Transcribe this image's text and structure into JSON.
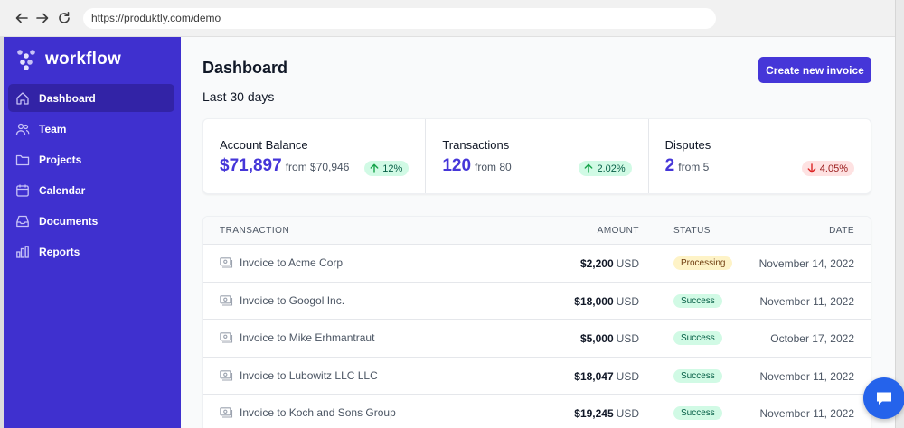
{
  "browser": {
    "url": "https://produktly.com/demo"
  },
  "sidebar": {
    "logo_text": "workflow",
    "items": [
      {
        "label": "Dashboard",
        "icon": "home-icon",
        "active": true
      },
      {
        "label": "Team",
        "icon": "users-icon"
      },
      {
        "label": "Projects",
        "icon": "folder-icon"
      },
      {
        "label": "Calendar",
        "icon": "calendar-icon"
      },
      {
        "label": "Documents",
        "icon": "inbox-icon"
      },
      {
        "label": "Reports",
        "icon": "chart-bar-icon"
      }
    ]
  },
  "header": {
    "title": "Dashboard",
    "subtitle": "Last 30 days",
    "create_label": "Create new invoice"
  },
  "stats": [
    {
      "label": "Account Balance",
      "value": "$71,897",
      "from": "from $70,946",
      "change": "12%",
      "direction": "up"
    },
    {
      "label": "Transactions",
      "value": "120",
      "from": "from 80",
      "change": "2.02%",
      "direction": "up"
    },
    {
      "label": "Disputes",
      "value": "2",
      "from": "from 5",
      "change": "4.05%",
      "direction": "down"
    }
  ],
  "table": {
    "headers": {
      "transaction": "TRANSACTION",
      "amount": "AMOUNT",
      "status": "STATUS",
      "date": "DATE"
    },
    "rows": [
      {
        "name": "Invoice to Acme Corp",
        "amount": "$2,200",
        "currency": "USD",
        "status": "Processing",
        "date": "November 14, 2022"
      },
      {
        "name": "Invoice to Googol Inc.",
        "amount": "$18,000",
        "currency": "USD",
        "status": "Success",
        "date": "November 11, 2022"
      },
      {
        "name": "Invoice to Mike Erhmantraut",
        "amount": "$5,000",
        "currency": "USD",
        "status": "Success",
        "date": "October 17, 2022"
      },
      {
        "name": "Invoice to Lubowitz LLC LLC",
        "amount": "$18,047",
        "currency": "USD",
        "status": "Success",
        "date": "November 11, 2022"
      },
      {
        "name": "Invoice to Koch and Sons Group",
        "amount": "$19,245",
        "currency": "USD",
        "status": "Success",
        "date": "November 11, 2022"
      }
    ]
  },
  "colors": {
    "sidebar": "#3f30cf",
    "active_item": "#3223a6",
    "accent": "#4536d8",
    "chat_button": "#2563eb"
  }
}
